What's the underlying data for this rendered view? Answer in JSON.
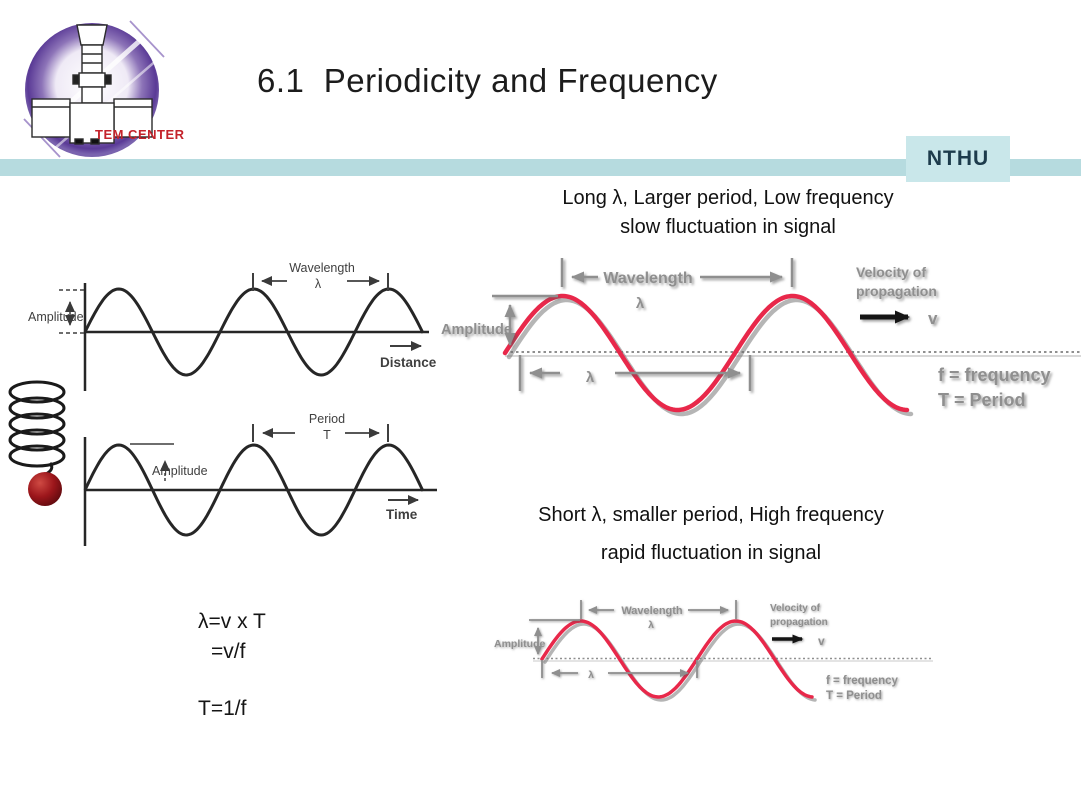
{
  "slide": {
    "title": "6.1  Periodicity and Frequency",
    "badge": "NTHU",
    "logo": {
      "caption": "TEM CENTER"
    }
  },
  "captions": {
    "long_wave": {
      "line1": "Long λ, Larger period, Low frequency",
      "line2": "slow fluctuation in signal"
    },
    "short_wave": {
      "line1": "Short λ, smaller period, High frequency",
      "line2": "rapid fluctuation in signal"
    }
  },
  "equations": {
    "lambda_vt": "λ=v x T",
    "lambda_vf": "=v/f",
    "t_1f": "T=1/f"
  },
  "space_wave": {
    "amplitude": "Amplitude",
    "wavelength": "Wavelength",
    "lambda": "λ",
    "axis": "Distance"
  },
  "time_wave": {
    "amplitude": "Amplitude",
    "period": "Period",
    "t": "T",
    "axis": "Time"
  },
  "signal_wave": {
    "wavelength": "Wavelength",
    "lambda": "λ",
    "amplitude": "Amplitude",
    "velocity1": "Velocity of",
    "velocity2": "propagation",
    "v": "v",
    "freq": "f = frequency",
    "period": "T = Period"
  },
  "colors": {
    "accent_bar": "#b6dbdf",
    "badge_bg": "#c9e7ea",
    "badge_text": "#1d3c4c",
    "title_text": "#1c1c1c",
    "wave_red": "#e8284a",
    "diagram_gray": "#8f8f8f",
    "diagram_dark": "#3a3a3a",
    "logo_purple": "#5a3a96",
    "logo_caption_red": "#c4232b",
    "ball_red": "#9c161b"
  }
}
